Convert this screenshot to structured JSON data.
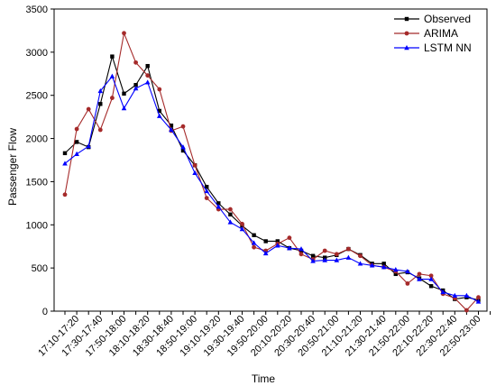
{
  "chart_data": {
    "type": "line",
    "xlabel": "Time",
    "ylabel": "Passenger Flow",
    "ylim": [
      0,
      3500
    ],
    "yticks": [
      0,
      500,
      1000,
      1500,
      2000,
      2500,
      3000,
      3500
    ],
    "grid": false,
    "legend_position": "top-right",
    "tick_labels": [
      "17:10-17:20",
      "17:30-17:40",
      "17:50-18:00",
      "18:10-18:20",
      "18:30-18:40",
      "18:50-19:00",
      "19:10-19:20",
      "19:30-19:40",
      "19:50-20:00",
      "20:10-20:20",
      "20:30-20:40",
      "20:50-21:00",
      "21:10-21:20",
      "21:30-21:40",
      "21:50-22:00",
      "22:10-22:20",
      "22:30-22:40",
      "22:50-23:00"
    ],
    "categories": [
      "17:10",
      "17:20",
      "17:30",
      "17:40",
      "17:50",
      "18:00",
      "18:10",
      "18:20",
      "18:30",
      "18:40",
      "18:50",
      "19:00",
      "19:10",
      "19:20",
      "19:30",
      "19:40",
      "19:50",
      "20:00",
      "20:10",
      "20:20",
      "20:30",
      "20:40",
      "20:50",
      "21:00",
      "21:10",
      "21:20",
      "21:30",
      "21:40",
      "21:50",
      "22:00",
      "22:10",
      "22:20",
      "22:30",
      "22:40",
      "22:50",
      "23:00"
    ],
    "series": [
      {
        "name": "Observed",
        "color": "#000000",
        "marker": "square",
        "values": [
          1830,
          1960,
          1900,
          2400,
          2950,
          2520,
          2620,
          2840,
          2320,
          2150,
          1860,
          1690,
          1440,
          1250,
          1120,
          990,
          880,
          810,
          810,
          730,
          700,
          640,
          620,
          650,
          720,
          650,
          550,
          550,
          430,
          450,
          380,
          290,
          240,
          140,
          160,
          130
        ]
      },
      {
        "name": "ARIMA",
        "color": "#a52a2a",
        "marker": "circle",
        "values": [
          1350,
          2110,
          2340,
          2100,
          2470,
          3220,
          2880,
          2730,
          2570,
          2090,
          2140,
          1690,
          1310,
          1180,
          1180,
          1010,
          740,
          700,
          780,
          850,
          660,
          600,
          700,
          660,
          720,
          640,
          530,
          510,
          460,
          320,
          430,
          410,
          200,
          150,
          10,
          160
        ]
      },
      {
        "name": "LSTM NN",
        "color": "#0000ff",
        "marker": "triangle",
        "values": [
          1710,
          1820,
          1910,
          2550,
          2720,
          2350,
          2580,
          2650,
          2260,
          2100,
          1900,
          1600,
          1390,
          1210,
          1030,
          950,
          790,
          670,
          760,
          730,
          720,
          580,
          590,
          590,
          620,
          550,
          530,
          510,
          480,
          460,
          370,
          370,
          220,
          180,
          180,
          110
        ]
      }
    ]
  }
}
